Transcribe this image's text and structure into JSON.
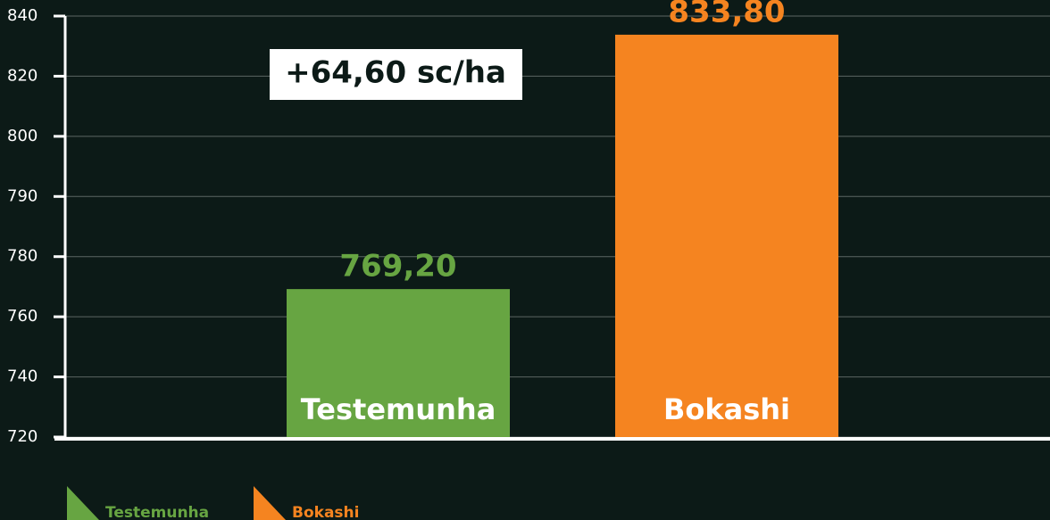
{
  "chart_data": {
    "type": "bar",
    "annotation": "+64,60 sc/ha",
    "categories": [
      "Testemunha",
      "Bokashi"
    ],
    "values": [
      769.2,
      833.8
    ],
    "value_labels": [
      "769,20",
      "833,80"
    ],
    "colors": [
      "#67a542",
      "#f58420"
    ],
    "ylim": [
      720,
      840
    ],
    "yticks": [
      720,
      740,
      760,
      780,
      790,
      800,
      820,
      840
    ],
    "grid": true,
    "legend": "bottom-left"
  }
}
